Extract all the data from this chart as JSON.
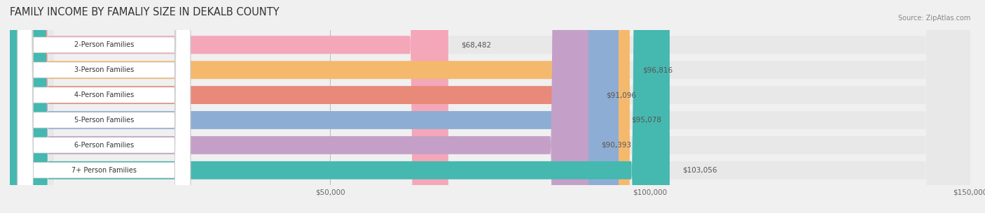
{
  "title": "FAMILY INCOME BY FAMALIY SIZE IN DEKALB COUNTY",
  "source": "Source: ZipAtlas.com",
  "categories": [
    "2-Person Families",
    "3-Person Families",
    "4-Person Families",
    "5-Person Families",
    "6-Person Families",
    "7+ Person Families"
  ],
  "values": [
    68482,
    96816,
    91096,
    95078,
    90393,
    103056
  ],
  "bar_colors": [
    "#f4a7b9",
    "#f5b96e",
    "#e8897a",
    "#8eadd4",
    "#c4a0c8",
    "#45b8b0"
  ],
  "value_labels": [
    "$68,482",
    "$96,816",
    "$91,096",
    "$95,078",
    "$90,393",
    "$103,056"
  ],
  "xlim": [
    0,
    150000
  ],
  "xtick_labels": [
    "$50,000",
    "$100,000",
    "$150,000"
  ],
  "background_color": "#f0f0f0",
  "title_fontsize": 10.5,
  "bar_height": 0.72
}
